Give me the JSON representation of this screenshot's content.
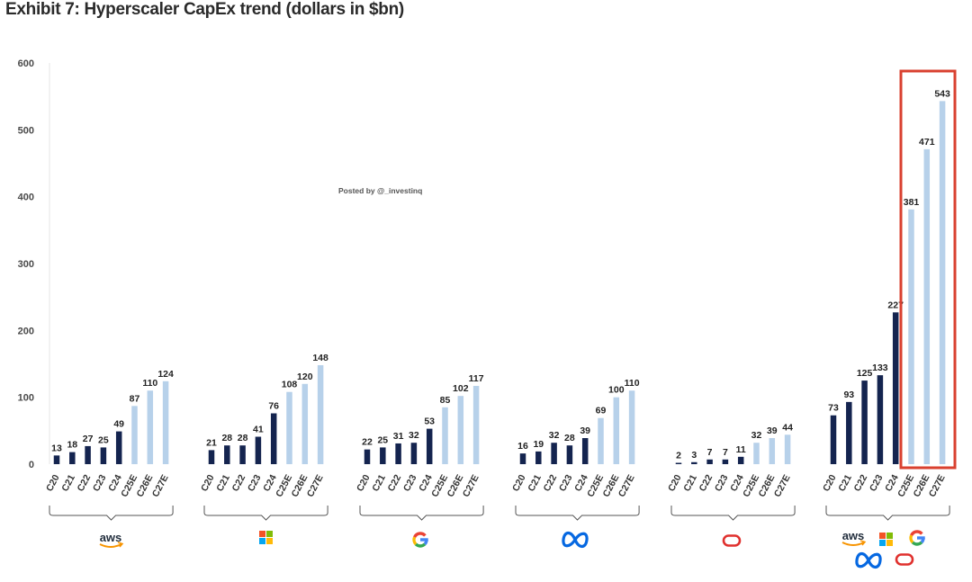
{
  "title": "Exhibit 7: Hyperscaler CapEx trend (dollars in $bn)",
  "watermark": "Posted by @_investinq",
  "colors": {
    "actual": "#14244f",
    "estimate": "#b7d1ea",
    "highlight": "#d9402f",
    "aws_text": "#232f3e",
    "aws_smile": "#f79400",
    "ms_red": "#f35325",
    "ms_green": "#81bc06",
    "ms_blue": "#05a6f0",
    "ms_yellow": "#ffba08",
    "google_blue": "#4285f4",
    "google_red": "#ea4335",
    "google_yellow": "#fbbc05",
    "google_green": "#34a853",
    "meta_blue": "#0668e1",
    "oracle_red": "#e0312e"
  },
  "chart_data": {
    "type": "bar",
    "title": "Exhibit 7: Hyperscaler CapEx trend (dollars in $bn)",
    "ylim": [
      0,
      600
    ],
    "yticks": [
      0,
      100,
      200,
      300,
      400,
      500,
      600
    ],
    "grid": false,
    "legend": "none",
    "categories": [
      "C20",
      "C21",
      "C22",
      "C23",
      "C24",
      "C25E",
      "C26E",
      "C27E"
    ],
    "groups": [
      {
        "logo": [
          "aws"
        ],
        "values": [
          13,
          18,
          27,
          25,
          49,
          87,
          110,
          124
        ]
      },
      {
        "logo": [
          "microsoft"
        ],
        "values": [
          21,
          28,
          28,
          41,
          76,
          108,
          120,
          148
        ]
      },
      {
        "logo": [
          "google"
        ],
        "values": [
          22,
          25,
          31,
          32,
          53,
          85,
          102,
          117
        ]
      },
      {
        "logo": [
          "meta"
        ],
        "values": [
          16,
          19,
          32,
          28,
          39,
          69,
          100,
          110
        ]
      },
      {
        "logo": [
          "oracle"
        ],
        "values": [
          2,
          3,
          7,
          7,
          11,
          32,
          39,
          44
        ]
      },
      {
        "logo": [
          "aws",
          "microsoft",
          "google",
          "meta",
          "oracle"
        ],
        "values": [
          73,
          93,
          125,
          133,
          227,
          381,
          471,
          543
        ],
        "highlight_estimates": true
      }
    ],
    "estimate_categories": [
      "C25E",
      "C26E",
      "C27E"
    ]
  },
  "logos": {
    "aws": "aws"
  }
}
